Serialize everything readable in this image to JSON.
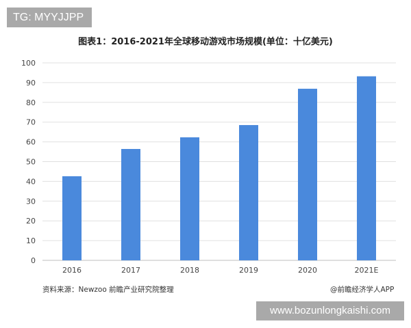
{
  "badge": "TG: MYYJJPP",
  "chart_data": {
    "type": "bar",
    "title": "图表1：2016-2021年全球移动游戏市场规模(单位：十亿美元)",
    "categories": [
      "2016",
      "2017",
      "2018",
      "2019",
      "2020",
      "2021E"
    ],
    "values": [
      42.6,
      56.4,
      62.3,
      68.5,
      86.9,
      93.2
    ],
    "ylim": [
      0,
      100
    ],
    "yticks": [
      0,
      10,
      20,
      30,
      40,
      50,
      60,
      70,
      80,
      90,
      100
    ],
    "grid": true,
    "bar_color": "#4a89dc",
    "xlabel": "",
    "ylabel": ""
  },
  "source": "资料来源：Newzoo 前瞻产业研究院整理",
  "brand": "@前瞻经济学人APP",
  "url_badge": "www.bozunlongkaishi.com"
}
